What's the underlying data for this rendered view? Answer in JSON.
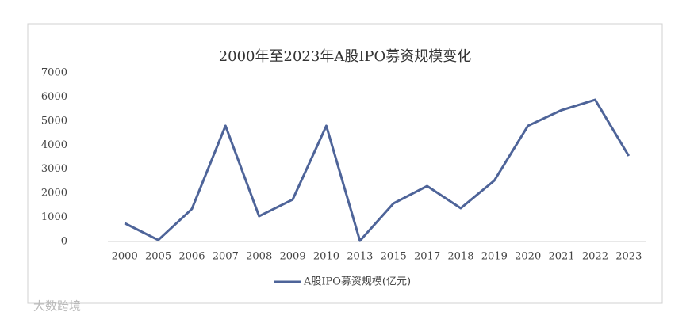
{
  "chart_data": {
    "type": "line",
    "title": "2000年至2023年A股IPO募资规模变化",
    "categories": [
      "2000",
      "2005",
      "2006",
      "2007",
      "2008",
      "2009",
      "2010",
      "2013",
      "2015",
      "2017",
      "2018",
      "2019",
      "2020",
      "2021",
      "2022",
      "2023"
    ],
    "series": [
      {
        "name": "A股IPO募资规模(亿元)",
        "color": "#4e6499",
        "values": [
          760,
          60,
          1350,
          4800,
          1050,
          1740,
          4800,
          30,
          1580,
          2300,
          1380,
          2530,
          4800,
          5450,
          5880,
          3550
        ]
      }
    ],
    "ylim": [
      0,
      7000
    ],
    "yticks": [
      0,
      1000,
      2000,
      3000,
      4000,
      5000,
      6000,
      7000
    ],
    "grid": false,
    "legend": "bottom"
  },
  "watermark": "大数跨境"
}
